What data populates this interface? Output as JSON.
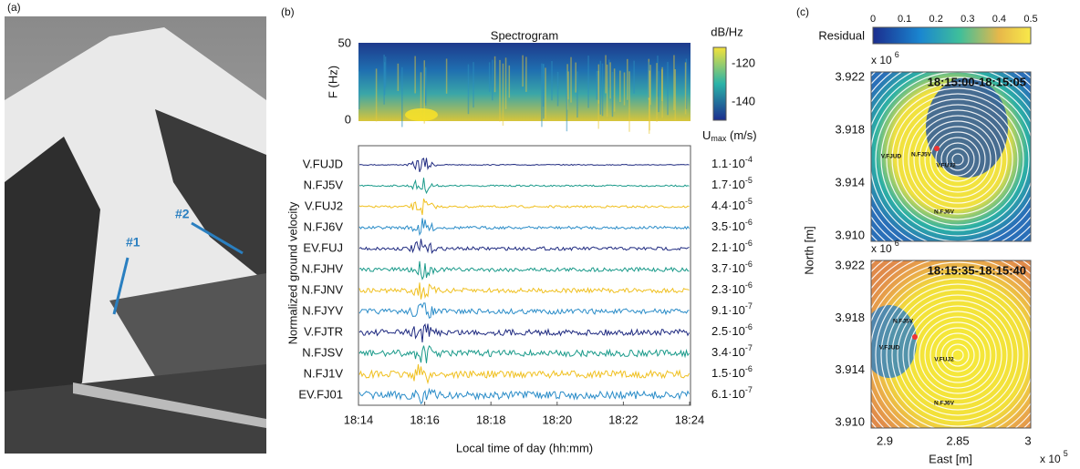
{
  "panel_a": {
    "label": "(a)",
    "annotations": [
      "#1",
      "#2"
    ]
  },
  "panel_b": {
    "label": "(b)",
    "spectrogram": {
      "title": "Spectrogram",
      "y_label": "F (Hz)",
      "yticks": [
        "50",
        "0"
      ],
      "colorbar_label": "dB/Hz",
      "colorbar_ticks": [
        "-120",
        "-140"
      ]
    },
    "traces": {
      "y_label": "Normalized ground velocity",
      "umax_label": {
        "main": "U",
        "sub": "max",
        "unit": " (m/s)"
      },
      "stations": [
        "V.FUJD",
        "N.FJ5V",
        "V.FUJ2",
        "N.FJ6V",
        "EV.FUJ",
        "N.FJHV",
        "N.FJNV",
        "N.FJYV",
        "V.FJTR",
        "N.FJSV",
        "N.FJ1V",
        "EV.FJ01"
      ],
      "umax": [
        {
          "base": "1.1·10",
          "exp": "-4"
        },
        {
          "base": "1.7·10",
          "exp": "-5"
        },
        {
          "base": "4.4·10",
          "exp": "-5"
        },
        {
          "base": "3.5·10",
          "exp": "-6"
        },
        {
          "base": "2.1·10",
          "exp": "-6"
        },
        {
          "base": "3.7·10",
          "exp": "-6"
        },
        {
          "base": "2.3·10",
          "exp": "-6"
        },
        {
          "base": "9.1·10",
          "exp": "-7"
        },
        {
          "base": "2.5·10",
          "exp": "-6"
        },
        {
          "base": "3.4·10",
          "exp": "-7"
        },
        {
          "base": "1.5·10",
          "exp": "-6"
        },
        {
          "base": "6.1·10",
          "exp": "-7"
        }
      ]
    },
    "xticks": [
      "18:14",
      "18:16",
      "18:18",
      "18:20",
      "18:22",
      "18:24"
    ],
    "x_label": "Local time of day (hh:mm)"
  },
  "panel_c": {
    "label": "(c)",
    "colorbar_label": "Residual",
    "colorbar_ticks": [
      "0",
      "0.1",
      "0.2",
      "0.3",
      "0.4",
      "0.5"
    ],
    "y_label": "North [m]",
    "x_label": "East [m]",
    "x_exp": {
      "base": "x 10",
      "exp": "5"
    },
    "xticks": [
      "2.9",
      "2.85",
      "3"
    ],
    "maps": [
      {
        "time": "18:15:00-18:15:05",
        "y_exp": {
          "base": "x 10",
          "exp": "6"
        },
        "yticks": [
          "3.922",
          "3.918",
          "3.914",
          "3.910"
        ],
        "stations": [
          "N.FJ5V",
          "V.FJUD",
          "V.FUJ2",
          "N.FJ6V"
        ]
      },
      {
        "time": "18:15:35-18:15:40",
        "y_exp": {
          "base": "x 10",
          "exp": "6"
        },
        "yticks": [
          "3.922",
          "3.918",
          "3.914",
          "3.910"
        ],
        "stations": [
          "N.FJ5V",
          "V.FJUD",
          "V.FUJ2",
          "N.FJ6V"
        ]
      }
    ]
  }
}
